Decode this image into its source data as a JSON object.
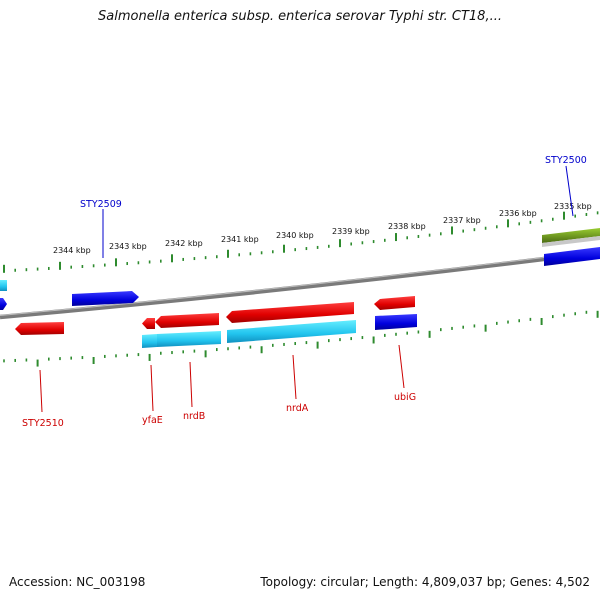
{
  "title": "Salmonella enterica subsp. enterica serovar Typhi str. CT18,...",
  "footer": {
    "accession": "Accession: NC_003198",
    "topology": "Topology: circular; Length: 4,809,037 bp; Genes: 4,502"
  },
  "ruler": {
    "kbp_labels": [
      "2344 kbp",
      "2343 kbp",
      "2342 kbp",
      "2341 kbp",
      "2340 kbp",
      "2339 kbp",
      "2338 kbp",
      "2337 kbp",
      "2336 kbp",
      "2335 kbp"
    ]
  },
  "genes": [
    {
      "name": "STY2509",
      "color": "#0000cc"
    },
    {
      "name": "STY2500",
      "color": "#0000cc"
    },
    {
      "name": "STY2510",
      "color": "#cc0000"
    },
    {
      "name": "yfaE",
      "color": "#cc0000"
    },
    {
      "name": "nrdB",
      "color": "#cc0000"
    },
    {
      "name": "nrdA",
      "color": "#cc0000"
    },
    {
      "name": "ubiG",
      "color": "#cc0000"
    }
  ],
  "colors": {
    "backbone": "#808080",
    "tick": "#2e8b2e",
    "forward_gene": "#0000ee",
    "reverse_gene": "#ee0000",
    "rna": "#22ccee",
    "other_feature": "#6b8e23"
  }
}
